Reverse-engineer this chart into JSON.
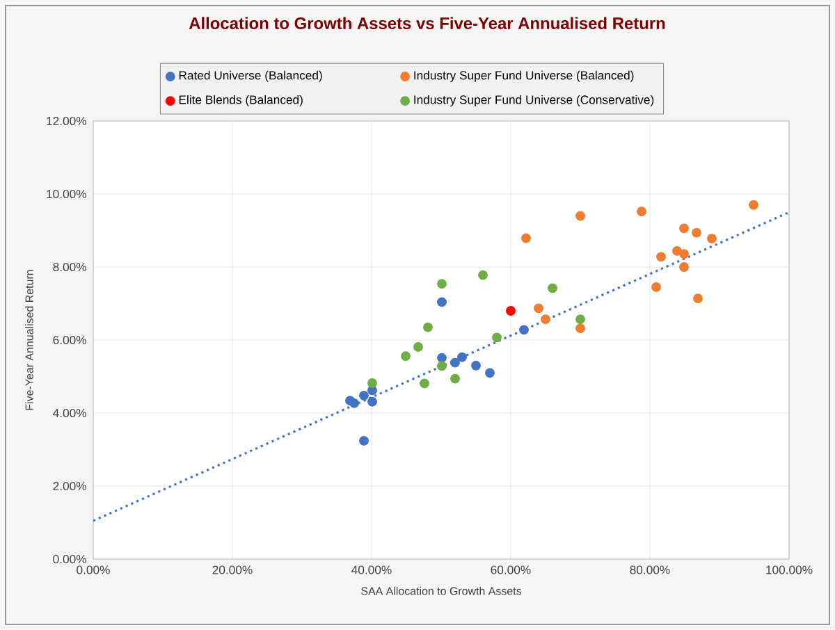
{
  "chart_data": {
    "type": "scatter",
    "title": "Allocation to Growth Assets vs Five-Year Annualised Return",
    "xlabel": "SAA Allocation to Growth Assets",
    "ylabel": "Five-Year Annualised Return",
    "xlim": [
      0,
      100
    ],
    "ylim": [
      0,
      12
    ],
    "xticks": [
      {
        "value": 0,
        "label": "0.00%"
      },
      {
        "value": 20,
        "label": "20.00%"
      },
      {
        "value": 40,
        "label": "40.00%"
      },
      {
        "value": 60,
        "label": "60.00%"
      },
      {
        "value": 80,
        "label": "80.00%"
      },
      {
        "value": 100,
        "label": "100.00%"
      }
    ],
    "yticks": [
      {
        "value": 0,
        "label": "0.00%"
      },
      {
        "value": 2,
        "label": "2.00%"
      },
      {
        "value": 4,
        "label": "4.00%"
      },
      {
        "value": 6,
        "label": "6.00%"
      },
      {
        "value": 8,
        "label": "8.00%"
      },
      {
        "value": 10,
        "label": "10.00%"
      },
      {
        "value": 12,
        "label": "12.00%"
      }
    ],
    "grid": true,
    "legend": "top",
    "marker": "circle",
    "series": [
      {
        "name": "Rated Universe (Balanced)",
        "color": "#4472c4",
        "x": [
          50.1,
          38.9,
          36.9,
          37.5,
          38.9,
          40.1,
          40.1,
          50.1,
          52.0,
          53.0,
          55.0,
          57.0,
          61.9
        ],
        "values": [
          7.04,
          3.24,
          4.34,
          4.27,
          4.48,
          4.62,
          4.31,
          5.51,
          5.38,
          5.53,
          5.3,
          5.1,
          6.28
        ]
      },
      {
        "name": "Industry Super Fund Universe (Balanced)",
        "color": "#ed7d31",
        "x": [
          70.0,
          62.2,
          64.0,
          65.0,
          70.0,
          78.8,
          94.9,
          84.9,
          86.7,
          88.9,
          81.6,
          83.9,
          84.9,
          84.9,
          80.9,
          86.9
        ],
        "values": [
          9.4,
          8.79,
          6.87,
          6.57,
          6.32,
          9.52,
          9.7,
          9.06,
          8.94,
          8.78,
          8.28,
          8.44,
          8.36,
          8.0,
          7.45,
          7.14
        ]
      },
      {
        "name": "Elite Blends (Balanced)",
        "color": "#ff0000",
        "x": [
          60.0
        ],
        "values": [
          6.8
        ]
      },
      {
        "name": "Industry Super Fund Universe (Conservative)",
        "color": "#70ad47",
        "x": [
          40.1,
          50.1,
          56.0,
          66.0,
          48.1,
          46.7,
          44.9,
          50.1,
          47.6,
          52.0,
          58.0,
          70.0
        ],
        "values": [
          4.82,
          7.54,
          7.78,
          7.42,
          6.35,
          5.81,
          5.56,
          5.29,
          4.81,
          4.94,
          6.07,
          6.57
        ]
      },
      {
        "type": "line",
        "color": "#4472c4",
        "marker": "none",
        "line_style": "dotted",
        "x": [
          0,
          100
        ],
        "values": [
          1.05,
          9.5
        ]
      }
    ]
  }
}
